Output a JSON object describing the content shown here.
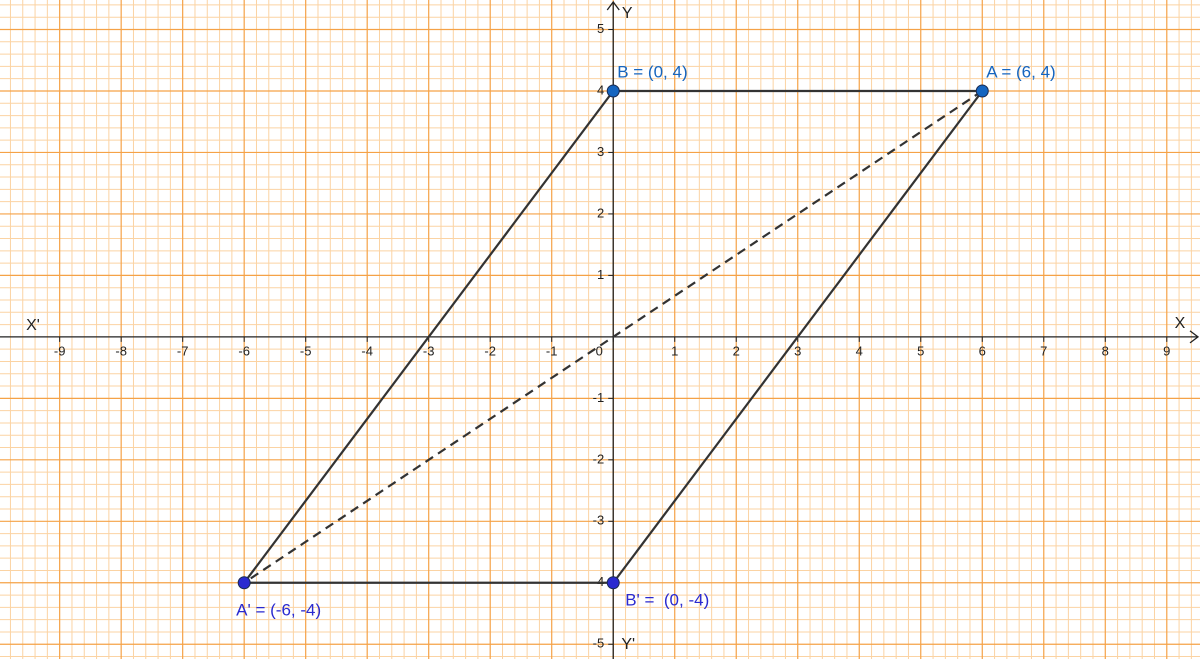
{
  "chart_data": {
    "type": "geometry",
    "xlim": [
      -9.97,
      9.54
    ],
    "ylim": [
      -5.24,
      5.48
    ],
    "xticks": [
      -9,
      -8,
      -7,
      -6,
      -5,
      -4,
      -3,
      -2,
      -1,
      0,
      1,
      2,
      3,
      4,
      5,
      6,
      7,
      8,
      9
    ],
    "yticks": [
      -5,
      -4,
      -3,
      -2,
      -1,
      1,
      2,
      3,
      4,
      5
    ],
    "x_label": "X",
    "x_label_neg": "X'",
    "y_label": "Y",
    "y_label_neg": "Y'",
    "grid": true,
    "points": [
      {
        "x": 6,
        "y": 4,
        "label": "A = (6, 4)",
        "color": "#1565c0"
      },
      {
        "x": 0,
        "y": 4,
        "label": "B = (0, 4)",
        "color": "#1565c0"
      },
      {
        "x": -6,
        "y": -4,
        "label": "A' = (-6, -4)",
        "color": "#2a2ad0"
      },
      {
        "x": 0,
        "y": -4,
        "label": "B' =  (0, -4)",
        "color": "#2a2ad0"
      }
    ]
  }
}
